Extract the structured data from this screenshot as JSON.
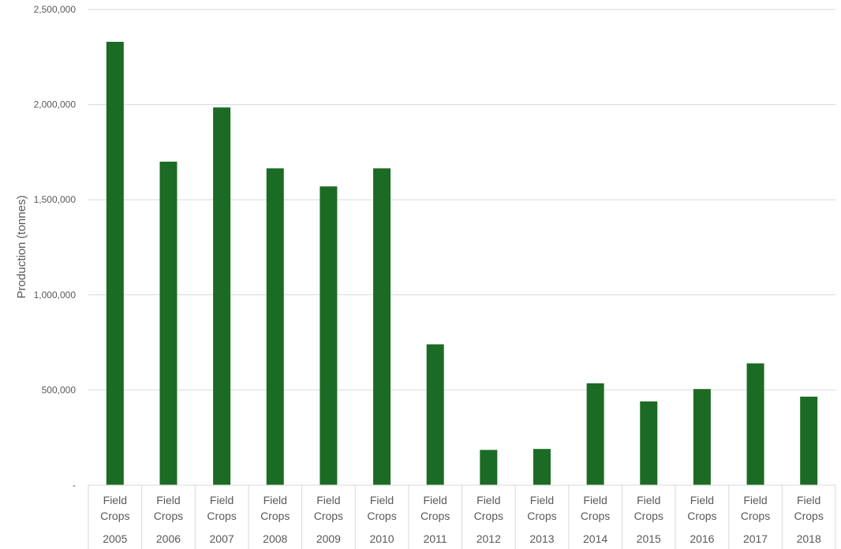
{
  "chart_data": {
    "type": "bar",
    "ylabel": "Production (tonnes)",
    "xlabel": "",
    "ylim": [
      0,
      2500000
    ],
    "y_ticks": [
      {
        "value": 0,
        "label": "-"
      },
      {
        "value": 500000,
        "label": "500,000"
      },
      {
        "value": 1000000,
        "label": "1,000,000"
      },
      {
        "value": 1500000,
        "label": "1,500,000"
      },
      {
        "value": 2000000,
        "label": "2,000,000"
      },
      {
        "value": 2500000,
        "label": "2,500,000"
      }
    ],
    "category_group_label": [
      "Field",
      "Crops"
    ],
    "categories": [
      "2005",
      "2006",
      "2007",
      "2008",
      "2009",
      "2010",
      "2011",
      "2012",
      "2013",
      "2014",
      "2015",
      "2016",
      "2017",
      "2018"
    ],
    "values": [
      2330000,
      1700000,
      1985000,
      1665000,
      1570000,
      1665000,
      740000,
      185000,
      190000,
      535000,
      440000,
      505000,
      640000,
      465000
    ],
    "grid": true,
    "legend": "none",
    "bar_color": "#1b6b24",
    "grid_color": "#d9d9d9"
  }
}
